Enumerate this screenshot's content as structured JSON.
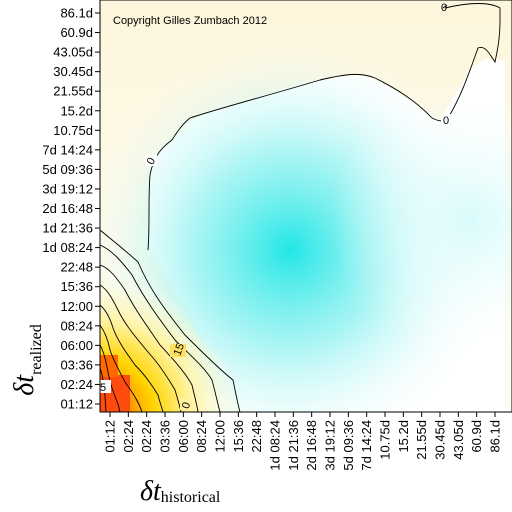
{
  "chart_data": {
    "type": "heatmap",
    "title": "",
    "copyright": "Copyright Gilles Zumbach 2012",
    "xlabel": {
      "symbol": "δt",
      "subscript": "historical"
    },
    "ylabel": {
      "symbol": "δt",
      "subscript": "realized"
    },
    "x_ticks": [
      "01:12",
      "02:24",
      "02:24",
      "03:36",
      "06:00",
      "08:24",
      "12:00",
      "15:36",
      "22:48",
      "1d 08:24",
      "1d 21:36",
      "2d 16:48",
      "3d 19:12",
      "5d 09:36",
      "7d 14:24",
      "10.75d",
      "15.2d",
      "21.55d",
      "30.45d",
      "43.05d",
      "60.9d",
      "86.1d"
    ],
    "y_ticks": [
      "01:12",
      "02:24",
      "03:36",
      "06:00",
      "08:24",
      "12:00",
      "15:36",
      "22:48",
      "1d 08:24",
      "1d 21:36",
      "2d 16:48",
      "3d 19:12",
      "5d 09:36",
      "7d 14:24",
      "10.75d",
      "15.2d",
      "21.55d",
      "30.45d",
      "43.05d",
      "60.9d",
      "86.1d"
    ],
    "contour_labels": [
      "0",
      "0",
      "0",
      "15",
      "5",
      "0"
    ],
    "colors": {
      "low": "#22e6e6",
      "mid": "#fefdf2",
      "high": "#ffd400",
      "peak": "#ff3a00"
    }
  }
}
